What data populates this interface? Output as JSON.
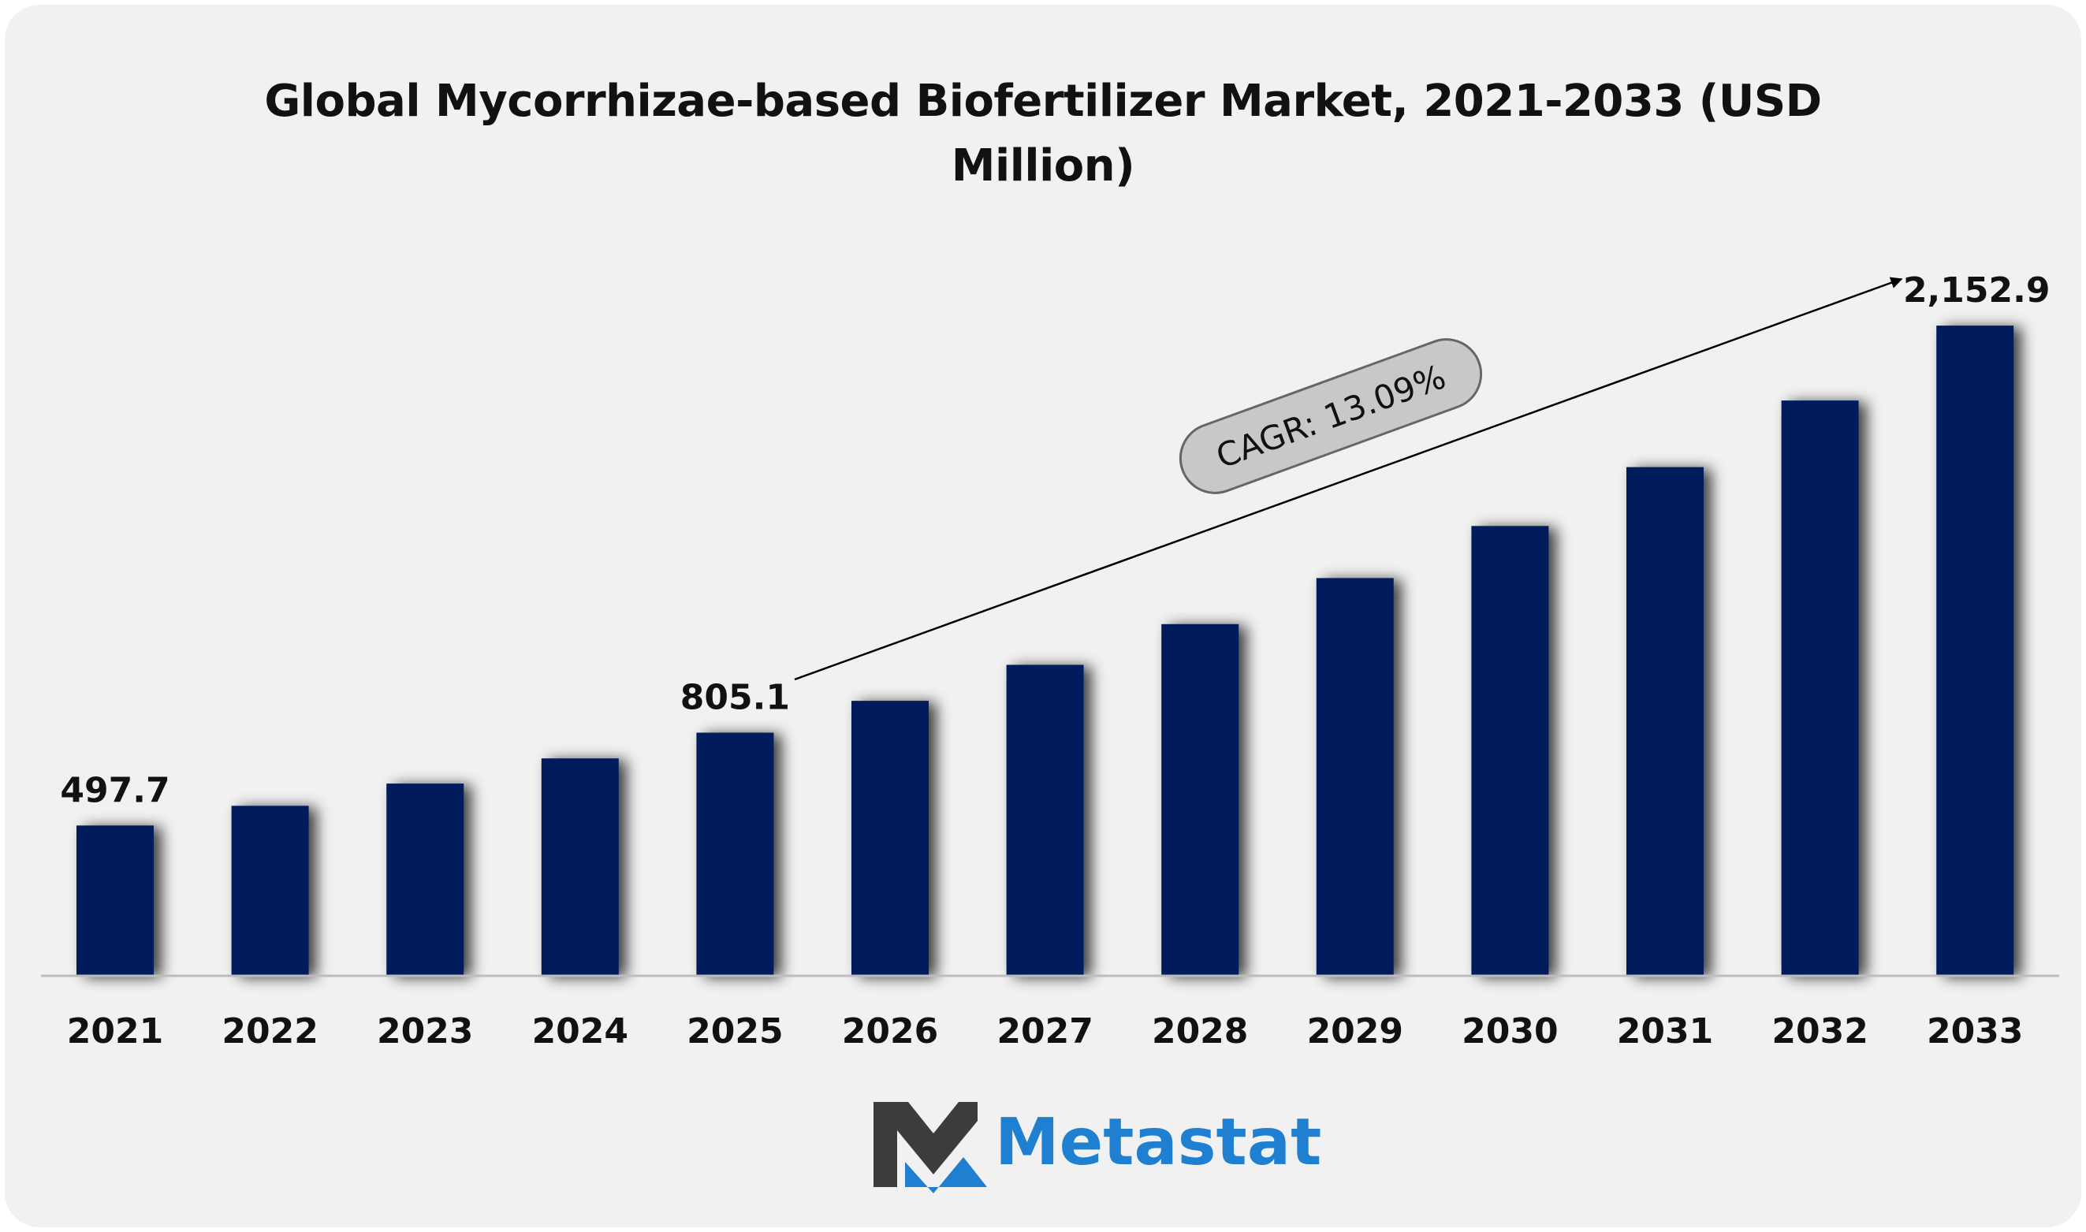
{
  "chart_data": {
    "type": "bar",
    "title": "Global Mycorrhizae-based Biofertilizer Market, 2021-2033 (USD Million)",
    "xlabel": "",
    "ylabel": "",
    "categories": [
      "2021",
      "2022",
      "2023",
      "2024",
      "2025",
      "2026",
      "2027",
      "2028",
      "2029",
      "2030",
      "2031",
      "2032",
      "2033"
    ],
    "series": [
      {
        "values": [
          497.7,
          562.9,
          636.6,
          719.9,
          805.1,
          910.5,
          1029.7,
          1164.5,
          1317.0,
          1489.4,
          1684.4,
          1904.9,
          2152.9
        ]
      }
    ],
    "data_labels": {
      "2021": "497.7",
      "2025": "805.1",
      "2033": "2,152.9"
    },
    "annotation": "CAGR: 13.09%",
    "ylim": [
      0,
      2200
    ],
    "grid": false,
    "legend": "none",
    "colors": {
      "bar": "#021f5c",
      "background": "#f1f1f1",
      "badge": "#c8c8c8",
      "brand": "#1f7fd0",
      "logo_dark": "#3c3c3c"
    }
  },
  "brand": {
    "name": "Metastat",
    "icon": "metastat-m-logo-icon"
  }
}
